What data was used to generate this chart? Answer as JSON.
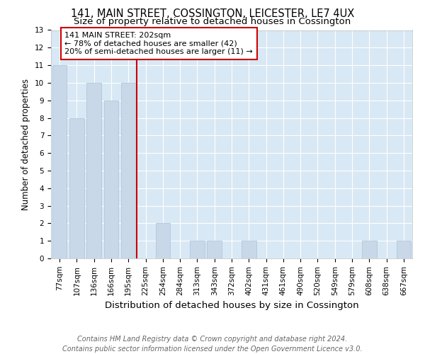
{
  "title1": "141, MAIN STREET, COSSINGTON, LEICESTER, LE7 4UX",
  "title2": "Size of property relative to detached houses in Cossington",
  "xlabel": "Distribution of detached houses by size in Cossington",
  "ylabel": "Number of detached properties",
  "categories": [
    "77sqm",
    "107sqm",
    "136sqm",
    "166sqm",
    "195sqm",
    "225sqm",
    "254sqm",
    "284sqm",
    "313sqm",
    "343sqm",
    "372sqm",
    "402sqm",
    "431sqm",
    "461sqm",
    "490sqm",
    "520sqm",
    "549sqm",
    "579sqm",
    "608sqm",
    "638sqm",
    "667sqm"
  ],
  "values": [
    11,
    8,
    10,
    9,
    10,
    0,
    2,
    0,
    1,
    1,
    0,
    1,
    0,
    0,
    0,
    0,
    0,
    0,
    1,
    0,
    1
  ],
  "bar_color": "#c8d8e8",
  "bar_edge_color": "#b0c8dc",
  "subject_line_color": "#cc0000",
  "annotation_text": "141 MAIN STREET: 202sqm\n← 78% of detached houses are smaller (42)\n20% of semi-detached houses are larger (11) →",
  "annotation_box_color": "#ffffff",
  "annotation_box_edge": "#cc0000",
  "ylim": [
    0,
    13
  ],
  "yticks": [
    0,
    1,
    2,
    3,
    4,
    5,
    6,
    7,
    8,
    9,
    10,
    11,
    12,
    13
  ],
  "footer_line1": "Contains HM Land Registry data © Crown copyright and database right 2024.",
  "footer_line2": "Contains public sector information licensed under the Open Government Licence v3.0.",
  "fig_bg_color": "#ffffff",
  "plot_bg_color": "#d8e8f4",
  "grid_color": "#ffffff",
  "title1_fontsize": 10.5,
  "title2_fontsize": 9.5,
  "xlabel_fontsize": 9.5,
  "ylabel_fontsize": 8.5,
  "tick_fontsize": 7.5,
  "footer_fontsize": 7,
  "annot_fontsize": 8
}
